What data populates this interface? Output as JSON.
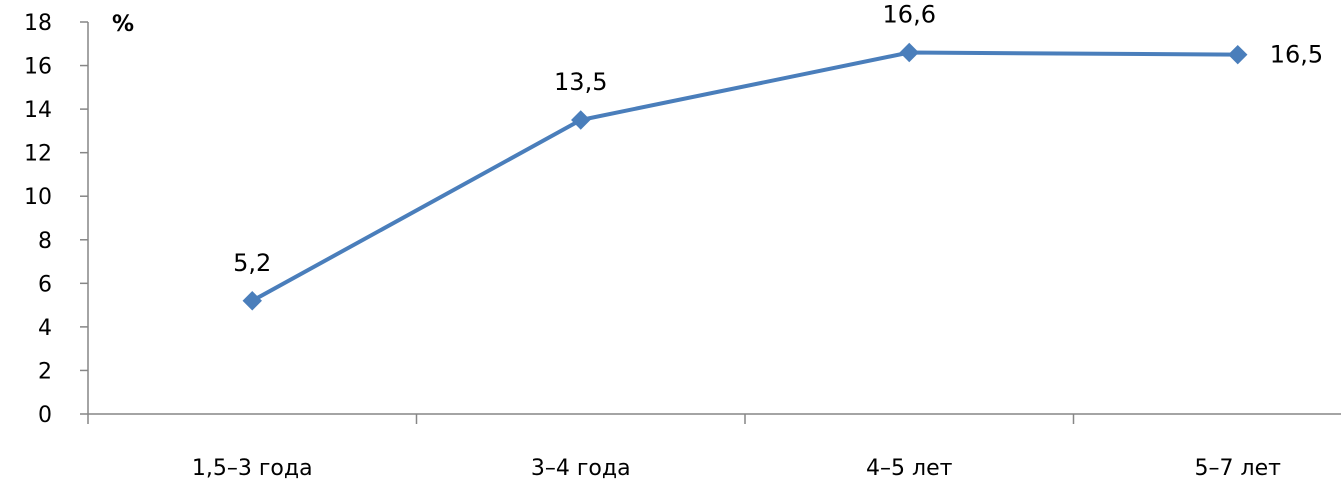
{
  "chart_data": {
    "type": "line",
    "categories": [
      "1,5–3 года",
      "3–4 года",
      "4–5 лет",
      "5–7 лет"
    ],
    "series": [
      {
        "values": [
          5.2,
          13.5,
          16.6,
          16.5
        ]
      }
    ],
    "data_labels": [
      "5,2",
      "13,5",
      "16,6",
      "16,5"
    ],
    "y_unit_label": "%",
    "ylim": [
      0,
      18
    ],
    "y_ticks": [
      0,
      2,
      4,
      6,
      8,
      10,
      12,
      14,
      16,
      18
    ],
    "grid": false,
    "legend": "none",
    "marker": "diamond",
    "colors": {
      "series": "#4A7EBB",
      "axis": "#868686",
      "text": "#000000"
    }
  }
}
